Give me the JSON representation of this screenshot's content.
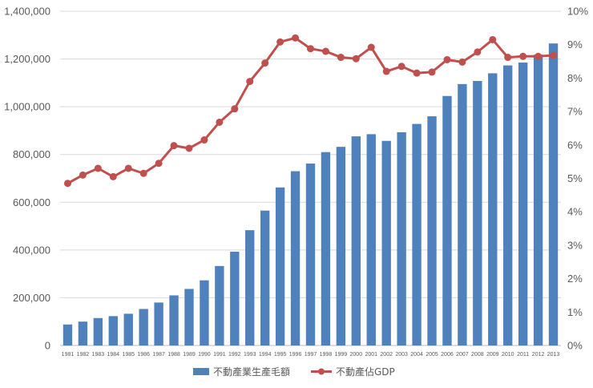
{
  "chart_data": {
    "type": "bar",
    "categories": [
      "1981",
      "1982",
      "1983",
      "1984",
      "1985",
      "1986",
      "1987",
      "1988",
      "1989",
      "1990",
      "1991",
      "1992",
      "1993",
      "1994",
      "1995",
      "1996",
      "1997",
      "1998",
      "1999",
      "2000",
      "2001",
      "2002",
      "2003",
      "2004",
      "2005",
      "2006",
      "2007",
      "2008",
      "2009",
      "2010",
      "2011",
      "2012",
      "2013"
    ],
    "series": [
      {
        "name": "不動產業生產毛額",
        "type": "bar",
        "axis": "left",
        "color": "#4f81bd",
        "values": [
          88000,
          100000,
          115000,
          123000,
          133000,
          153000,
          180000,
          210000,
          237000,
          273000,
          333000,
          393000,
          483000,
          565000,
          662000,
          730000,
          762000,
          810000,
          832000,
          876000,
          885000,
          857000,
          893000,
          928000,
          960000,
          1045000,
          1095000,
          1108000,
          1140000,
          1173000,
          1185000,
          1218000,
          1265000
        ]
      },
      {
        "name": "不動產佔GDP",
        "type": "line",
        "axis": "right",
        "color": "#c0504d",
        "values": [
          4.85,
          5.1,
          5.3,
          5.05,
          5.3,
          5.15,
          5.45,
          5.98,
          5.9,
          6.15,
          6.68,
          7.08,
          7.9,
          8.45,
          9.08,
          9.2,
          8.88,
          8.8,
          8.62,
          8.58,
          8.92,
          8.2,
          8.35,
          8.15,
          8.18,
          8.55,
          8.48,
          8.78,
          9.15,
          8.62,
          8.65,
          8.65,
          8.68
        ]
      }
    ],
    "yleft": {
      "min": 0,
      "max": 1400000,
      "step": 200000,
      "ticks": [
        "0",
        "200,000",
        "400,000",
        "600,000",
        "800,000",
        "1,000,000",
        "1,200,000",
        "1,400,000"
      ]
    },
    "yright": {
      "min": 0,
      "max": 10,
      "step": 1,
      "ticks": [
        "0%",
        "1%",
        "2%",
        "3%",
        "4%",
        "5%",
        "6%",
        "7%",
        "8%",
        "9%",
        "10%"
      ]
    },
    "grid": true,
    "legend": "bottom-center"
  }
}
